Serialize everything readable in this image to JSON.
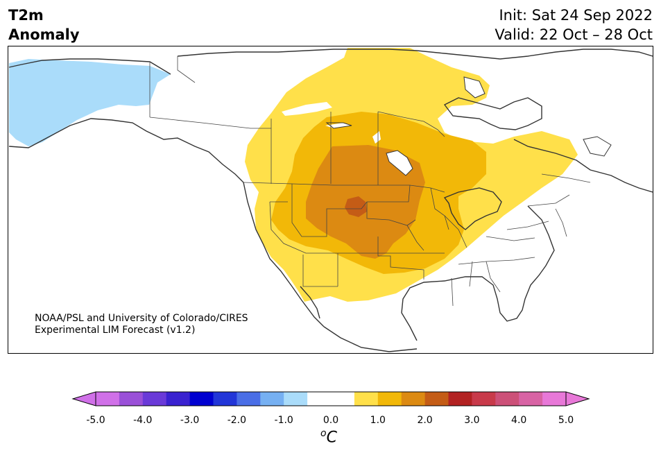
{
  "header": {
    "variable": "T2m",
    "subtitle": "Anomaly",
    "init": "Init: Sat 24 Sep 2022",
    "valid": "Valid: 22 Oct – 28 Oct"
  },
  "credit": {
    "line1": "NOAA/PSL and University of Colorado/CIRES",
    "line2": "Experimental LIM Forecast (v1.2)"
  },
  "colorbar": {
    "unit_symbol": "C",
    "unit_prefix": "o",
    "ticks": [
      "-5.0",
      "-4.0",
      "-3.0",
      "-2.0",
      "-1.0",
      "0.0",
      "1.0",
      "2.0",
      "3.0",
      "4.0",
      "5.0"
    ],
    "colors": [
      "#d070e8",
      "#9a50d8",
      "#6a3ad8",
      "#3a22d0",
      "#0000d0",
      "#2236d8",
      "#4a6ee6",
      "#76b0f2",
      "#aadcfa",
      "#ffffff",
      "#ffffff",
      "#ffe04a",
      "#f2b808",
      "#dc8a12",
      "#c45c16",
      "#b22222",
      "#c83a4a",
      "#cc5078",
      "#d863a4",
      "#e878d8"
    ]
  },
  "colors": {
    "cold_light": "#aadcfa",
    "warm_1": "#ffe04a",
    "warm_2": "#f2b808",
    "warm_3": "#dc8a12",
    "warm_4": "#c45c16",
    "coast": "#333333"
  }
}
